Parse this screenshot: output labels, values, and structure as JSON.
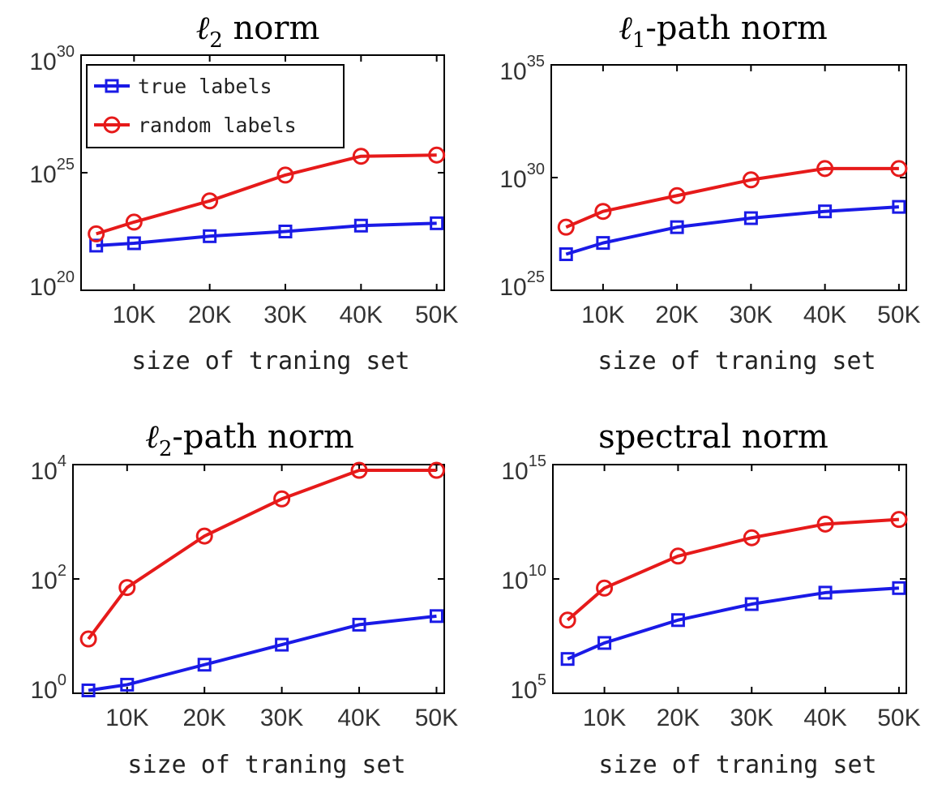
{
  "chart_data": [
    {
      "type": "line",
      "title_math": "ℓ",
      "title_sub": "2",
      "title_rest": " norm",
      "xlabel": "size of traning set",
      "x": [
        5000,
        10000,
        20000,
        30000,
        40000,
        50000
      ],
      "x_ticks": [
        10000,
        20000,
        30000,
        40000,
        50000
      ],
      "x_tick_labels": [
        "10K",
        "20K",
        "30K",
        "40K",
        "50K"
      ],
      "xlim": [
        3000,
        51000
      ],
      "yscale": "log",
      "ylim_exp": [
        20,
        30
      ],
      "y_ticks": [
        {
          "base": "10",
          "exp": "20"
        },
        {
          "base": "10",
          "exp": "25"
        },
        {
          "base": "10",
          "exp": "30"
        }
      ],
      "series": [
        {
          "name": "true labels",
          "color": "#1a1ae6",
          "marker": "square",
          "log10_values": [
            21.9,
            22.0,
            22.3,
            22.5,
            22.75,
            22.85
          ]
        },
        {
          "name": "random labels",
          "color": "#e61a1a",
          "marker": "circle",
          "log10_values": [
            22.4,
            22.9,
            23.8,
            24.9,
            25.7,
            25.75
          ]
        }
      ],
      "legend": "top-left"
    },
    {
      "type": "line",
      "title_math": "ℓ",
      "title_sub": "1",
      "title_rest": "-path norm",
      "xlabel": "size of traning set",
      "x": [
        5000,
        10000,
        20000,
        30000,
        40000,
        50000
      ],
      "x_ticks": [
        10000,
        20000,
        30000,
        40000,
        50000
      ],
      "x_tick_labels": [
        "10K",
        "20K",
        "30K",
        "40K",
        "50K"
      ],
      "xlim": [
        3000,
        51000
      ],
      "yscale": "log",
      "ylim_exp": [
        25,
        35
      ],
      "y_ticks": [
        {
          "base": "10",
          "exp": "25"
        },
        {
          "base": "10",
          "exp": "30"
        },
        {
          "base": "10",
          "exp": "35"
        }
      ],
      "series": [
        {
          "name": "true labels",
          "color": "#1a1ae6",
          "marker": "square",
          "log10_values": [
            26.6,
            27.1,
            27.8,
            28.2,
            28.5,
            28.7
          ]
        },
        {
          "name": "random labels",
          "color": "#e61a1a",
          "marker": "circle",
          "log10_values": [
            27.8,
            28.5,
            29.2,
            29.9,
            30.4,
            30.4
          ]
        }
      ]
    },
    {
      "type": "line",
      "title_math": "ℓ",
      "title_sub": "2",
      "title_rest": "-path norm",
      "xlabel": "size of traning set",
      "x": [
        5000,
        10000,
        20000,
        30000,
        40000,
        50000
      ],
      "x_ticks": [
        10000,
        20000,
        30000,
        40000,
        50000
      ],
      "x_tick_labels": [
        "10K",
        "20K",
        "30K",
        "40K",
        "50K"
      ],
      "xlim": [
        3000,
        51000
      ],
      "yscale": "log",
      "ylim_exp": [
        0,
        4
      ],
      "y_ticks": [
        {
          "base": "10",
          "exp": "0"
        },
        {
          "base": "10",
          "exp": "2"
        },
        {
          "base": "10",
          "exp": "4"
        }
      ],
      "series": [
        {
          "name": "true labels",
          "color": "#1a1ae6",
          "marker": "square",
          "log10_values": [
            0.05,
            0.15,
            0.5,
            0.85,
            1.2,
            1.35
          ]
        },
        {
          "name": "random labels",
          "color": "#e61a1a",
          "marker": "circle",
          "log10_values": [
            0.95,
            1.85,
            2.75,
            3.4,
            3.9,
            3.9
          ]
        }
      ]
    },
    {
      "type": "line",
      "title_math": "",
      "title_sub": "",
      "title_rest": "spectral norm",
      "xlabel": "size of traning set",
      "x": [
        5000,
        10000,
        20000,
        30000,
        40000,
        50000
      ],
      "x_ticks": [
        10000,
        20000,
        30000,
        40000,
        50000
      ],
      "x_tick_labels": [
        "10K",
        "20K",
        "30K",
        "40K",
        "50K"
      ],
      "xlim": [
        3000,
        51000
      ],
      "yscale": "log",
      "ylim_exp": [
        5,
        15
      ],
      "y_ticks": [
        {
          "base": "10",
          "exp": "5"
        },
        {
          "base": "10",
          "exp": "10"
        },
        {
          "base": "10",
          "exp": "15"
        }
      ],
      "series": [
        {
          "name": "true labels",
          "color": "#1a1ae6",
          "marker": "square",
          "log10_values": [
            6.5,
            7.2,
            8.2,
            8.9,
            9.4,
            9.6
          ]
        },
        {
          "name": "random labels",
          "color": "#e61a1a",
          "marker": "circle",
          "log10_values": [
            8.2,
            9.6,
            11.0,
            11.8,
            12.4,
            12.6
          ]
        }
      ]
    }
  ]
}
